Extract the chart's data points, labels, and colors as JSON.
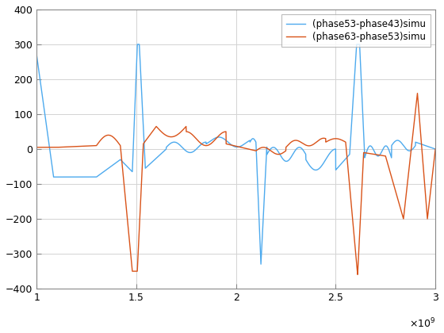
{
  "title": "",
  "xlabel": "",
  "ylabel": "",
  "xlim": [
    1000000000.0,
    3000000000.0
  ],
  "ylim": [
    -400,
    400
  ],
  "xticks": [
    1000000000.0,
    1500000000.0,
    2000000000.0,
    2500000000.0,
    3000000000.0
  ],
  "yticks": [
    -400,
    -300,
    -200,
    -100,
    0,
    100,
    200,
    300,
    400
  ],
  "legend1": "(phase53-phase43)simu",
  "legend2": "(phase63-phase53)simu",
  "color1": "#4DAAEE",
  "color2": "#D95319",
  "bg_color": "#ffffff",
  "grid_color": "#d3d3d3",
  "figsize": [
    5.6,
    4.2
  ],
  "dpi": 100
}
